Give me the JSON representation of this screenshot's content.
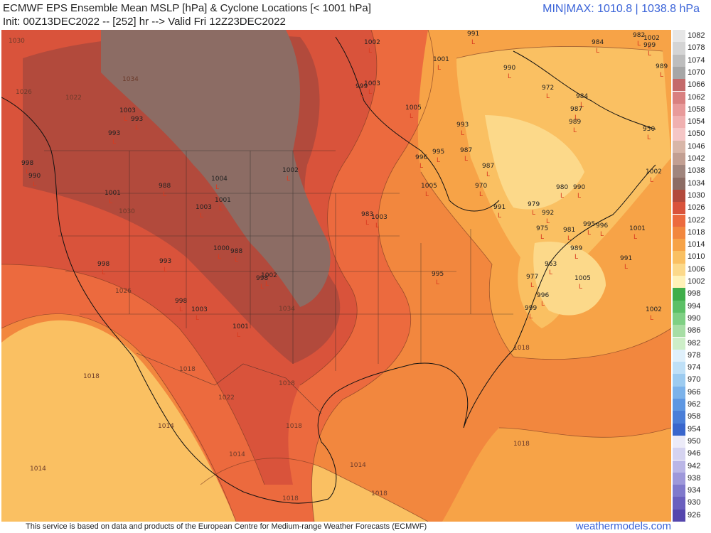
{
  "header": {
    "title_line1": "ECMWF EPS Ensemble Mean MSLP [hPa] & Cyclone Locations [< 1001 hPa]",
    "title_line2": "Init: 00Z13DEC2022 -- [252] hr --> Valid Fri 12Z23DEC2022",
    "minmax": "MIN|MAX: 1010.8 | 1038.8 hPa"
  },
  "footer": {
    "attribution": "This service is based on data and products of the European Centre for Medium-range Weather Forecasts (ECMWF)",
    "brand": "weathermodels.com"
  },
  "legend": {
    "items": [
      {
        "label": "1082",
        "color": "#e6e6e6"
      },
      {
        "label": "1078",
        "color": "#d4d4d4"
      },
      {
        "label": "1074",
        "color": "#bdbdbd"
      },
      {
        "label": "1070",
        "color": "#a6a6a6"
      },
      {
        "label": "1066",
        "color": "#c46a6a"
      },
      {
        "label": "1062",
        "color": "#d98080"
      },
      {
        "label": "1058",
        "color": "#e89a9a"
      },
      {
        "label": "1054",
        "color": "#f0b0b0"
      },
      {
        "label": "1050",
        "color": "#f5c6c6"
      },
      {
        "label": "1046",
        "color": "#d8b6a8"
      },
      {
        "label": "1042",
        "color": "#c29f92"
      },
      {
        "label": "1038",
        "color": "#a0857d"
      },
      {
        "label": "1034",
        "color": "#8c6c64"
      },
      {
        "label": "1030",
        "color": "#b24a3c"
      },
      {
        "label": "1026",
        "color": "#d9533b"
      },
      {
        "label": "1022",
        "color": "#ec6a3e"
      },
      {
        "label": "1018",
        "color": "#f2873e"
      },
      {
        "label": "1014",
        "color": "#f7a347"
      },
      {
        "label": "1010",
        "color": "#fac062"
      },
      {
        "label": "1006",
        "color": "#fcd98a"
      },
      {
        "label": "1002",
        "color": "#fff2b8"
      },
      {
        "label": "998",
        "color": "#3fae4a"
      },
      {
        "label": "994",
        "color": "#5cc066"
      },
      {
        "label": "990",
        "color": "#7fd084"
      },
      {
        "label": "986",
        "color": "#a7dea5"
      },
      {
        "label": "982",
        "color": "#cdeec8"
      },
      {
        "label": "978",
        "color": "#dff0fb"
      },
      {
        "label": "974",
        "color": "#bfe0f7"
      },
      {
        "label": "970",
        "color": "#9ccbf0"
      },
      {
        "label": "966",
        "color": "#7bb2ea"
      },
      {
        "label": "962",
        "color": "#5e97e2"
      },
      {
        "label": "958",
        "color": "#4a7ed8"
      },
      {
        "label": "954",
        "color": "#3a66cc"
      },
      {
        "label": "950",
        "color": "#ecebf8"
      },
      {
        "label": "946",
        "color": "#d5d3f0"
      },
      {
        "label": "942",
        "color": "#bab6e6"
      },
      {
        "label": "938",
        "color": "#9e98da"
      },
      {
        "label": "934",
        "color": "#8079cc"
      },
      {
        "label": "930",
        "color": "#6a5fbe"
      },
      {
        "label": "926",
        "color": "#5546ad"
      }
    ]
  },
  "isobar_labels": [
    "1030",
    "1034",
    "1026",
    "1022",
    "1018",
    "1014",
    "1018",
    "1018",
    "1014",
    "1034",
    "1030",
    "1026",
    "1022",
    "1018",
    "1014",
    "1018",
    "1018",
    "1014",
    "1018",
    "1018"
  ],
  "cyclones": [
    {
      "v": "991"
    },
    {
      "v": "1002"
    },
    {
      "v": "1001"
    },
    {
      "v": "984"
    },
    {
      "v": "982"
    },
    {
      "v": "989"
    },
    {
      "v": "1003"
    },
    {
      "v": "990"
    },
    {
      "v": "972"
    },
    {
      "v": "984"
    },
    {
      "v": "999"
    },
    {
      "v": "1005"
    },
    {
      "v": "987"
    },
    {
      "v": "989"
    },
    {
      "v": "950"
    },
    {
      "v": "1002"
    },
    {
      "v": "993"
    },
    {
      "v": "995"
    },
    {
      "v": "987"
    },
    {
      "v": "996"
    },
    {
      "v": "987"
    },
    {
      "v": "1004"
    },
    {
      "v": "1002"
    },
    {
      "v": "988"
    },
    {
      "v": "1001"
    },
    {
      "v": "998"
    },
    {
      "v": "990"
    },
    {
      "v": "1003"
    },
    {
      "v": "1001"
    },
    {
      "v": "983"
    },
    {
      "v": "1003"
    },
    {
      "v": "1005"
    },
    {
      "v": "970"
    },
    {
      "v": "980"
    },
    {
      "v": "990"
    },
    {
      "v": "991"
    },
    {
      "v": "979"
    },
    {
      "v": "992"
    },
    {
      "v": "975"
    },
    {
      "v": "981"
    },
    {
      "v": "995"
    },
    {
      "v": "996"
    },
    {
      "v": "1001"
    },
    {
      "v": "993"
    },
    {
      "v": "1003"
    },
    {
      "v": "993"
    },
    {
      "v": "1000"
    },
    {
      "v": "988"
    },
    {
      "v": "998"
    },
    {
      "v": "998"
    },
    {
      "v": "995"
    },
    {
      "v": "989"
    },
    {
      "v": "963"
    },
    {
      "v": "977"
    },
    {
      "v": "1005"
    },
    {
      "v": "996"
    },
    {
      "v": "999"
    },
    {
      "v": "991"
    },
    {
      "v": "1001"
    },
    {
      "v": "1002"
    },
    {
      "v": "993"
    },
    {
      "v": "1002"
    },
    {
      "v": "999"
    },
    {
      "v": "998"
    },
    {
      "v": "1003"
    },
    {
      "v": "1002"
    }
  ]
}
